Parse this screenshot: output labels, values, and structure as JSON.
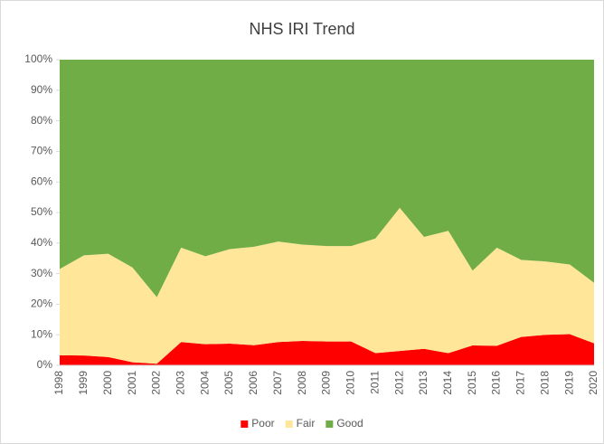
{
  "chart_data": {
    "type": "stacked_area",
    "title": "NHS IRI Trend",
    "categories": [
      "1998",
      "1999",
      "2000",
      "2001",
      "2002",
      "2003",
      "2004",
      "2005",
      "2006",
      "2007",
      "2008",
      "2009",
      "2010",
      "2011",
      "2012",
      "2013",
      "2014",
      "2015",
      "2016",
      "2017",
      "2018",
      "2019",
      "2020"
    ],
    "series": [
      {
        "name": "Poor",
        "color": "#ff0000",
        "values": [
          3.3,
          3.2,
          2.7,
          1.0,
          0.5,
          7.6,
          6.9,
          7.1,
          6.6,
          7.6,
          8.0,
          7.8,
          7.8,
          4.0,
          4.7,
          5.4,
          4.0,
          6.5,
          6.4,
          9.3,
          10.0,
          10.2,
          7.2
        ]
      },
      {
        "name": "Fair",
        "color": "#ffe699",
        "values": [
          28.2,
          32.8,
          33.8,
          31.0,
          21.8,
          30.9,
          28.8,
          30.9,
          32.2,
          32.9,
          31.5,
          31.2,
          31.2,
          37.5,
          46.8,
          36.6,
          40.0,
          24.5,
          32.1,
          25.2,
          24.0,
          22.8,
          19.8
        ]
      },
      {
        "name": "Good",
        "color": "#70ad47",
        "values": [
          68.5,
          64.0,
          63.5,
          68.0,
          77.7,
          61.5,
          64.3,
          62.0,
          61.2,
          59.5,
          60.5,
          61.0,
          61.0,
          58.5,
          48.5,
          58.0,
          56.0,
          69.0,
          61.5,
          65.5,
          66.0,
          67.0,
          73.0
        ]
      }
    ],
    "ylim": [
      0,
      100
    ],
    "yticks": [
      {
        "value": 0,
        "label": "0%"
      },
      {
        "value": 10,
        "label": "10%"
      },
      {
        "value": 20,
        "label": "20%"
      },
      {
        "value": 30,
        "label": "30%"
      },
      {
        "value": 40,
        "label": "40%"
      },
      {
        "value": 50,
        "label": "50%"
      },
      {
        "value": 60,
        "label": "60%"
      },
      {
        "value": 70,
        "label": "70%"
      },
      {
        "value": 80,
        "label": "80%"
      },
      {
        "value": 90,
        "label": "90%"
      },
      {
        "value": 100,
        "label": "100%"
      }
    ],
    "legend": "bottom"
  }
}
